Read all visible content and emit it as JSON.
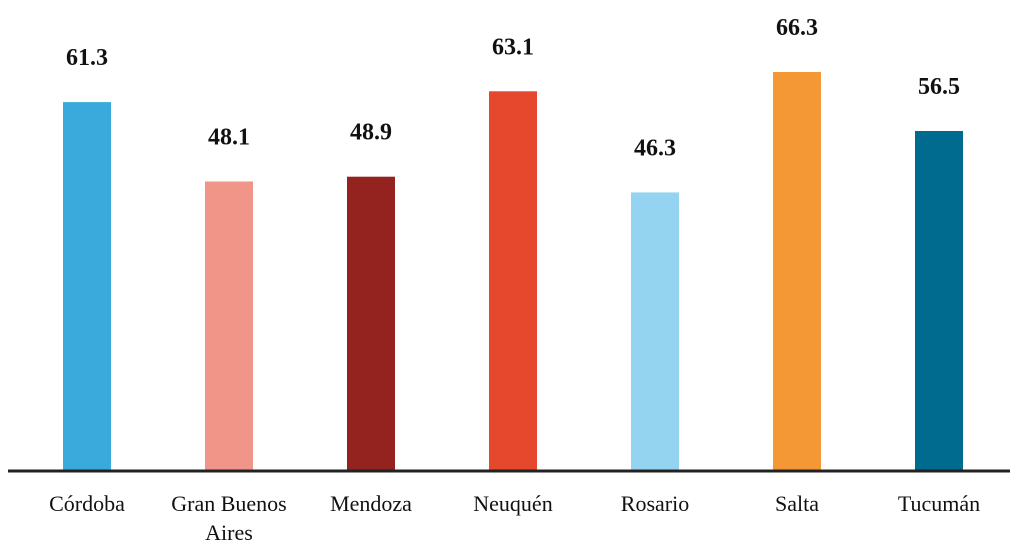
{
  "chart_data": {
    "type": "bar",
    "categories": [
      "Córdoba",
      "Gran Buenos Aires",
      "Mendoza",
      "Neuquén",
      "Rosario",
      "Salta",
      "Tucumán"
    ],
    "values": [
      61.3,
      48.1,
      48.9,
      63.1,
      46.3,
      66.3,
      56.5
    ],
    "value_labels": [
      "61.3",
      "48.1",
      "48.9",
      "63.1",
      "46.3",
      "66.3",
      "56.5"
    ],
    "colors": [
      "#3AAADC",
      "#F19589",
      "#94231F",
      "#E6482E",
      "#94D4F0",
      "#F39834",
      "#006A8F"
    ],
    "ylim": [
      0,
      66.3
    ],
    "grid": false,
    "legend": "none"
  }
}
